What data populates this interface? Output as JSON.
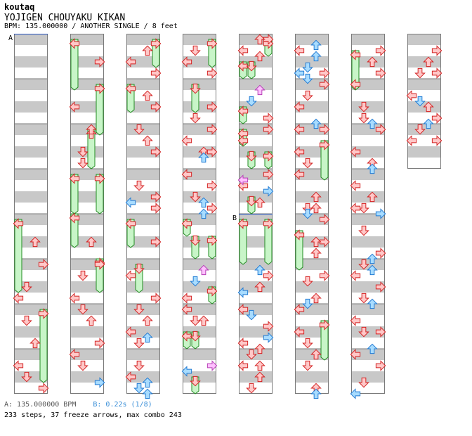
{
  "header": {
    "author": "koutaq",
    "title": "YOJIGEN CHOUYAKU KIKAN",
    "meta": "BPM: 135.000000 / ANOTHER SINGLE / 8 feet"
  },
  "markers": {
    "a": "A",
    "b": "B"
  },
  "footer": {
    "bpm_line": "A: 135.000000 BPM",
    "stop_line": "B: 0.22s (1/8)",
    "stats": "233 steps, 37 freeze arrows, max combo 243"
  },
  "colors": {
    "band_gray": "#c8c8c8",
    "border": "#7a7a7a",
    "red_fill": "#ffc8c8",
    "red_stroke": "#d21e1e",
    "blue_fill": "#a8dcff",
    "blue_stroke": "#1e78d2",
    "pink_fill": "#ffc0ff",
    "pink_stroke": "#b43cb4",
    "freeze_fill": "#c8f5c8",
    "freeze_stroke": "#228b22",
    "marker_line": "#2050c0"
  },
  "icons": [
    "arrow-left-icon",
    "arrow-down-icon",
    "arrow-up-icon",
    "arrow-right-icon"
  ]
}
